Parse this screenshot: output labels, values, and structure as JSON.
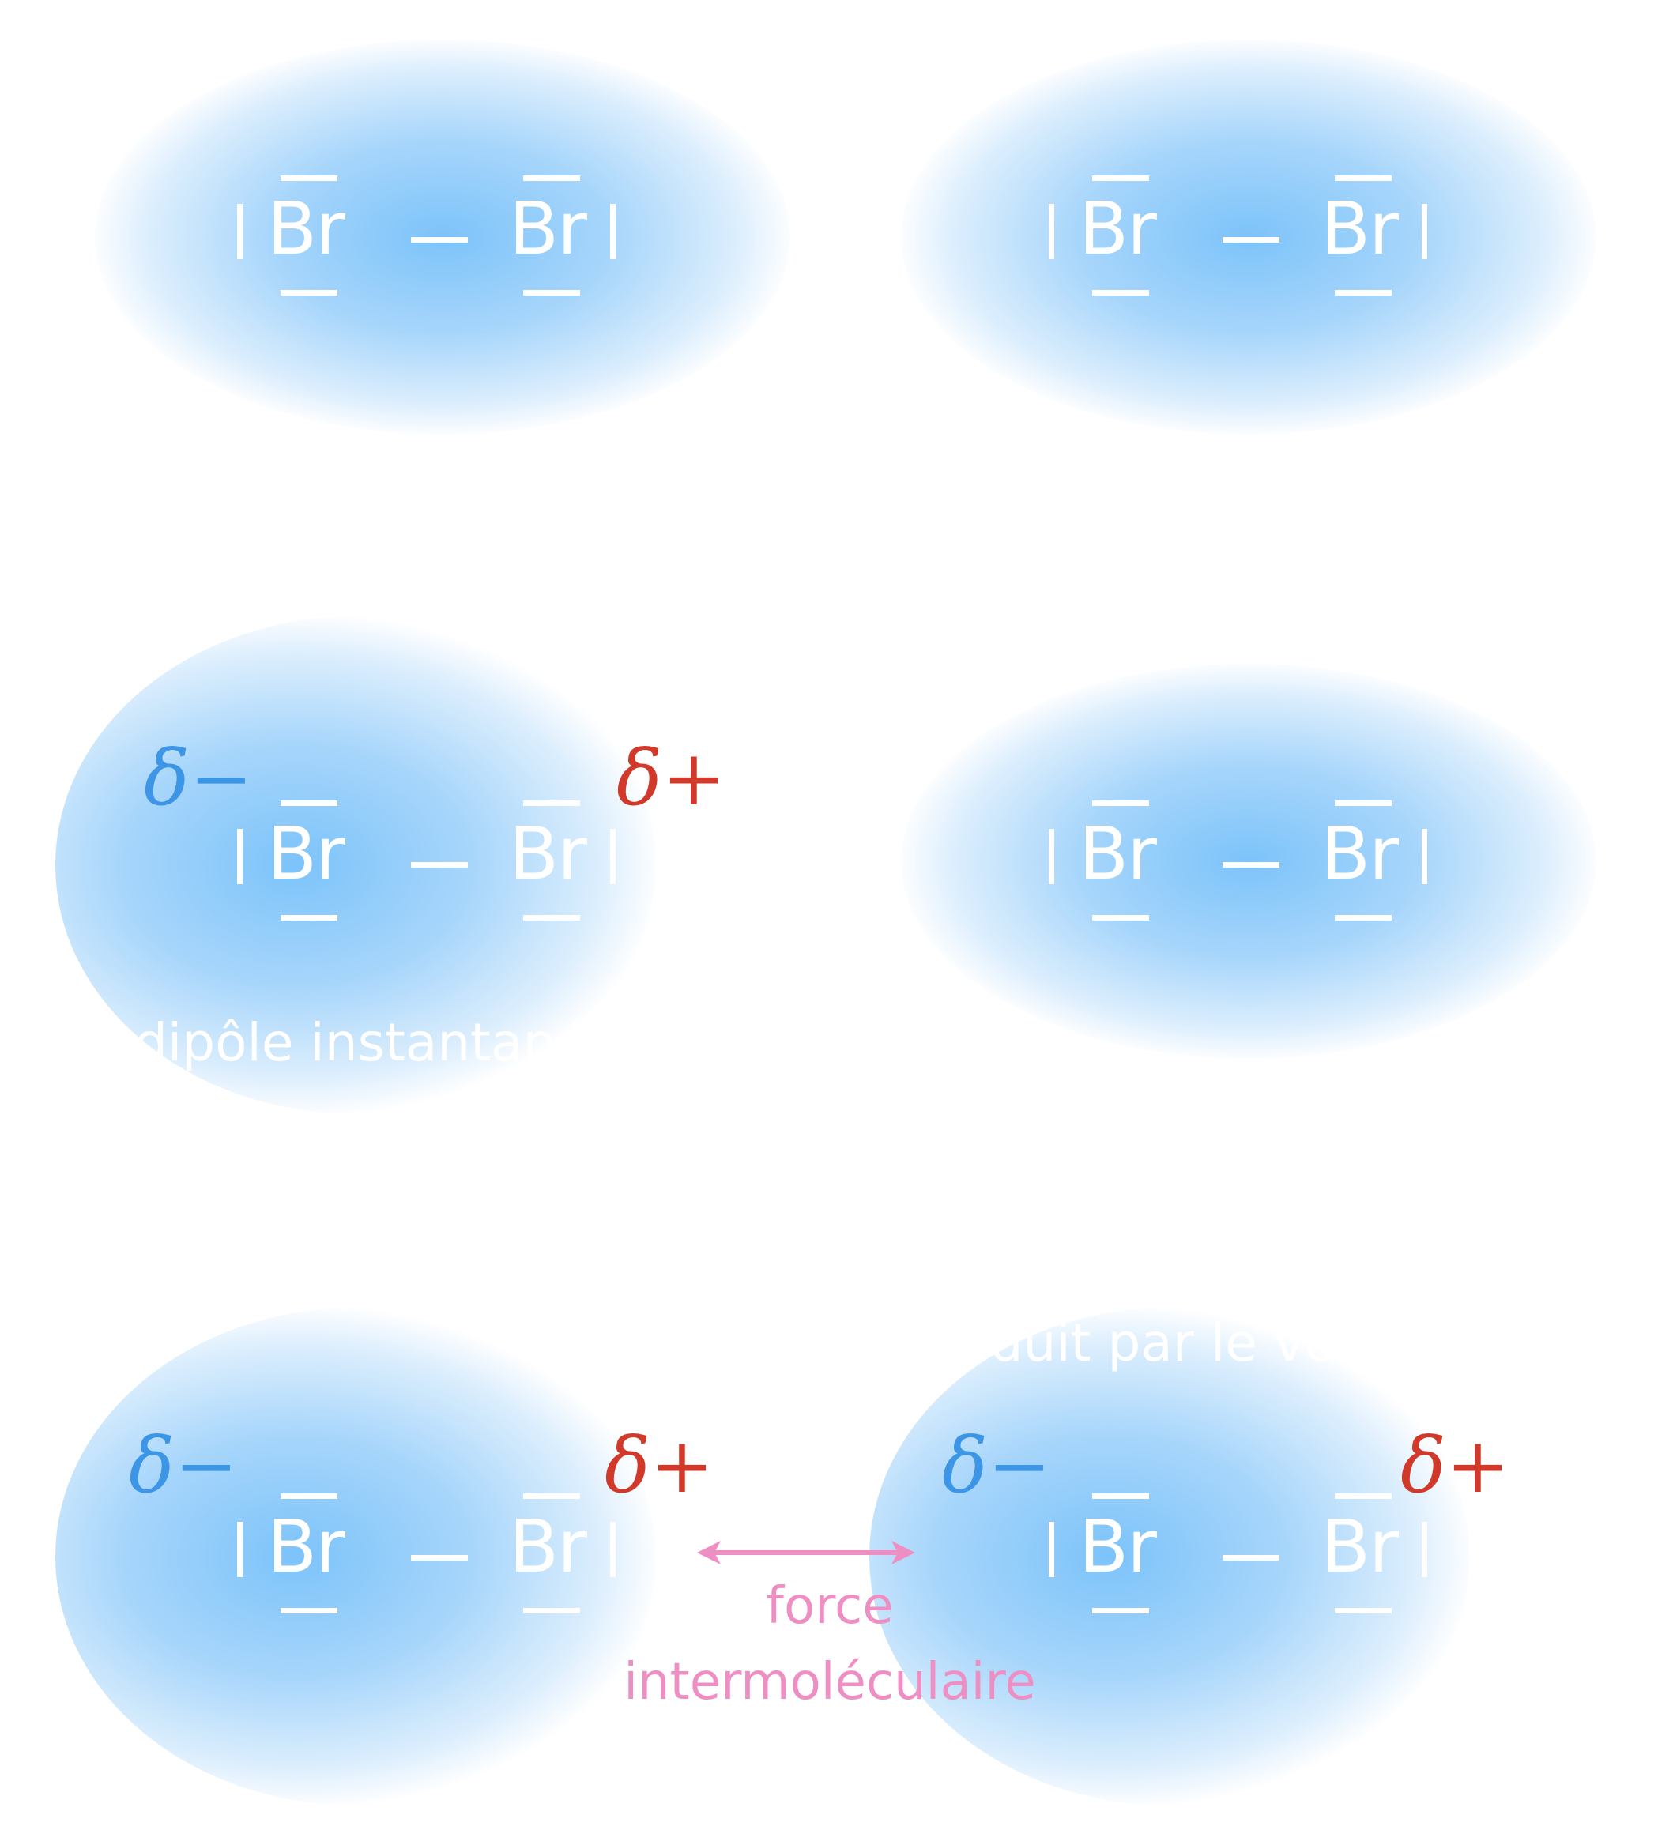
{
  "colors": {
    "cloud_center": "#7cc3fa",
    "delta_minus": "#3d95e6",
    "delta_plus": "#d13a2a",
    "force": "#ee8fc4",
    "text": "#ffffff"
  },
  "atom_symbol": "Br",
  "delta_minus": "δ−",
  "delta_plus": "δ+",
  "caption_instant": "dipôle instantané",
  "caption_induced": "dipôle induit par le voisin",
  "force_label": {
    "line1": "force",
    "line2": "intermoléculaire"
  },
  "arrow": "double-headed-arrow"
}
